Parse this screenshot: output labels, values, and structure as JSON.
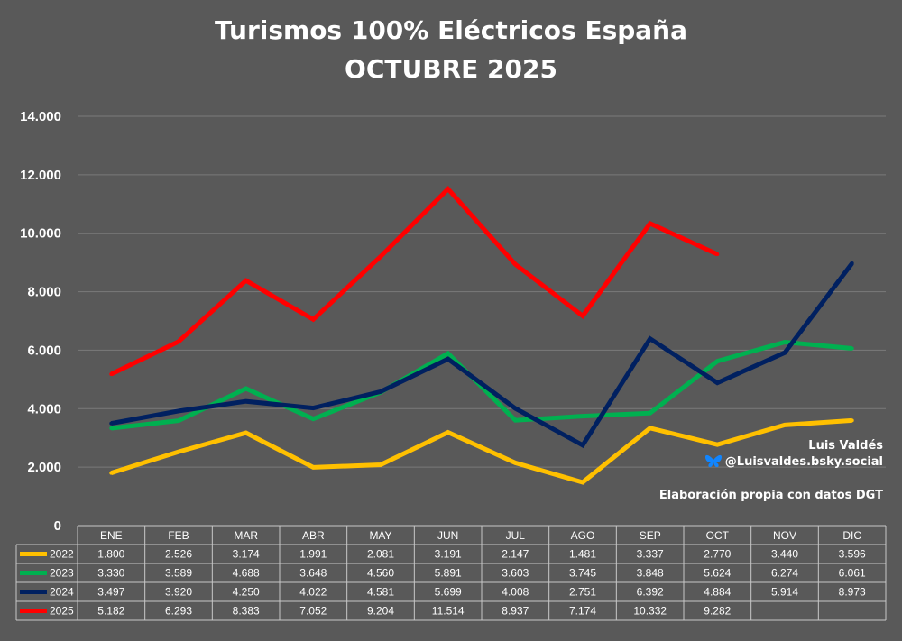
{
  "chart_data": {
    "type": "line",
    "title": "Turismos 100% Eléctricos España",
    "subtitle": "OCTUBRE 2025",
    "categories": [
      "ENE",
      "FEB",
      "MAR",
      "ABR",
      "MAY",
      "JUN",
      "JUL",
      "AGO",
      "SEP",
      "OCT",
      "NOV",
      "DIC"
    ],
    "ylim": [
      0,
      14000
    ],
    "yticks": [
      "0",
      "2.000",
      "4.000",
      "6.000",
      "8.000",
      "10.000",
      "12.000",
      "14.000"
    ],
    "grid": true,
    "series": [
      {
        "name": "2022",
        "color": "#ffc000",
        "values": [
          1800,
          2526,
          3174,
          1991,
          2081,
          3191,
          2147,
          1481,
          3337,
          2770,
          3440,
          3596
        ],
        "labels": [
          "1.800",
          "2.526",
          "3.174",
          "1.991",
          "2.081",
          "3.191",
          "2.147",
          "1.481",
          "3.337",
          "2.770",
          "3.440",
          "3.596"
        ]
      },
      {
        "name": "2023",
        "color": "#00b050",
        "values": [
          3330,
          3589,
          4688,
          3648,
          4560,
          5891,
          3603,
          3745,
          3848,
          5624,
          6274,
          6061
        ],
        "labels": [
          "3.330",
          "3.589",
          "4.688",
          "3.648",
          "4.560",
          "5.891",
          "3.603",
          "3.745",
          "3.848",
          "5.624",
          "6.274",
          "6.061"
        ]
      },
      {
        "name": "2024",
        "color": "#002060",
        "values": [
          3497,
          3920,
          4250,
          4022,
          4581,
          5699,
          4008,
          2751,
          6392,
          4884,
          5914,
          8973
        ],
        "labels": [
          "3.497",
          "3.920",
          "4.250",
          "4.022",
          "4.581",
          "5.699",
          "4.008",
          "2.751",
          "6.392",
          "4.884",
          "5.914",
          "8.973"
        ]
      },
      {
        "name": "2025",
        "color": "#ff0000",
        "values": [
          5182,
          6293,
          8383,
          7052,
          9204,
          11514,
          8937,
          7174,
          10332,
          9282,
          null,
          null
        ],
        "labels": [
          "5.182",
          "6.293",
          "8.383",
          "7.052",
          "9.204",
          "11.514",
          "8.937",
          "7.174",
          "10.332",
          "9.282",
          "",
          ""
        ]
      }
    ],
    "credits": {
      "author": "Luis Valdés",
      "handle": "@Luisvaldes.bsky.social",
      "source": "Elaboración propia con datos DGT",
      "bluesky_icon": "butterfly-icon",
      "bluesky_color": "#1185fe"
    }
  }
}
